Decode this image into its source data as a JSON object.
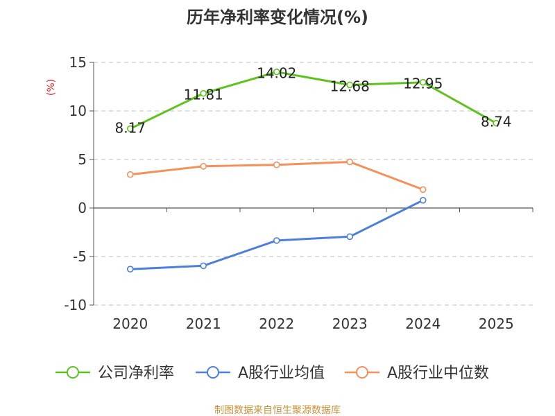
{
  "chart_data": {
    "type": "line",
    "title": "历年净利率变化情况(%)",
    "ylabel": "(%)",
    "categories": [
      "2020",
      "2021",
      "2022",
      "2023",
      "2024",
      "2025"
    ],
    "ylim": [
      -10,
      15
    ],
    "yticks": [
      "15",
      "10",
      "5",
      "0",
      "-5",
      "-10"
    ],
    "grid": true,
    "legend_position": "bottom",
    "series": [
      {
        "name": "公司净利率",
        "color": "#5ec21e",
        "values": [
          8.17,
          11.81,
          14.02,
          12.68,
          12.95,
          8.74
        ],
        "labels": [
          "8.17",
          "11.81",
          "14.02",
          "12.68",
          "12.95",
          "8.74"
        ]
      },
      {
        "name": "A股行业均值",
        "color": "#4a7fdc",
        "values": [
          -6.3,
          -5.95,
          -3.35,
          -2.95,
          0.8,
          null
        ]
      },
      {
        "name": "A股行业中位数",
        "color": "#f5905a",
        "values": [
          3.45,
          4.3,
          4.45,
          4.75,
          1.9,
          null
        ]
      }
    ]
  },
  "footer": {
    "source": "制图数据来自恒生聚源数据库",
    "source_color": "#c8923a"
  },
  "colors": {
    "axis": "#555555",
    "grid": "#cccccc",
    "ylabel": "#e02020"
  }
}
